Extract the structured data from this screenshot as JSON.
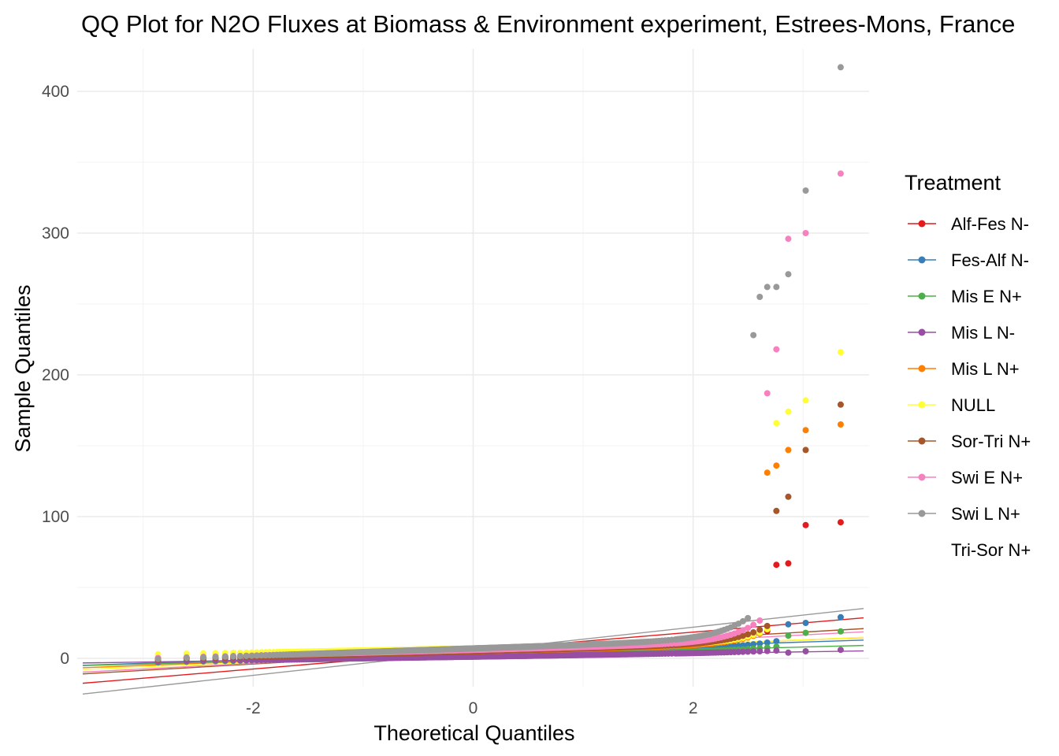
{
  "chart_data": {
    "type": "scatter",
    "title": "QQ Plot for N2O Fluxes at Biomass & Environment experiment, Estrees-Mons, France",
    "xlabel": "Theoretical Quantiles",
    "ylabel": "Sample Quantiles",
    "xlim": [
      -3.6,
      3.6
    ],
    "ylim": [
      -20,
      430
    ],
    "x_ticks": [
      -2,
      0,
      2
    ],
    "x_tick_labels": [
      "-2",
      "0",
      "2"
    ],
    "y_ticks": [
      0,
      100,
      200,
      300,
      400
    ],
    "y_tick_labels": [
      "0",
      "100",
      "200",
      "300",
      "400"
    ],
    "grid": true,
    "legend": {
      "title": "Treatment",
      "position": "right"
    },
    "series": [
      {
        "name": "Alf-Fes N-",
        "color": "#e41a1c",
        "max": 96,
        "mean": 5.5,
        "sd": 6.5,
        "spread": 8,
        "conv": 6,
        "shape": 3.2,
        "tail": [
          66,
          67,
          94,
          96
        ]
      },
      {
        "name": "Fes-Alf N-",
        "color": "#377eb8",
        "max": 29,
        "mean": 4,
        "sd": 2.5,
        "spread": 6,
        "conv": 2,
        "shape": 2.0,
        "tail": [
          24,
          25,
          29
        ]
      },
      {
        "name": "Mis E N+",
        "color": "#4daf4a",
        "max": 19,
        "mean": 2,
        "sd": 2.0,
        "spread": 5,
        "conv": 1.5,
        "shape": 2.4,
        "tail": [
          16,
          18,
          19
        ]
      },
      {
        "name": "Mis L N-",
        "color": "#984ea3",
        "max": 6,
        "mean": 1,
        "sd": 1.2,
        "spread": 4,
        "conv": 1.2,
        "shape": 2.0,
        "tail": [
          4,
          5,
          6
        ]
      },
      {
        "name": "Mis L N+",
        "color": "#ff7f00",
        "max": 165,
        "mean": 4,
        "sd": 3.0,
        "spread": 6,
        "conv": 5,
        "shape": 3.5,
        "tail": [
          131,
          136,
          147,
          161,
          165
        ]
      },
      {
        "name": "NULL",
        "color": "#ffff33",
        "max": 216,
        "mean": 3.5,
        "sd": 3.2,
        "spread": 5,
        "conv": 7,
        "shape": 4.0,
        "tail": [
          166,
          174,
          182,
          216
        ]
      },
      {
        "name": "Sor-Tri N+",
        "color": "#a65628",
        "max": 179,
        "mean": 5,
        "sd": 4.5,
        "spread": 7,
        "conv": 5,
        "shape": 3.3,
        "tail": [
          104,
          114,
          147,
          179
        ]
      },
      {
        "name": "Swi E N+",
        "color": "#f781bf",
        "max": 342,
        "mean": 4.5,
        "sd": 4.0,
        "spread": 7,
        "conv": 6,
        "shape": 3.6,
        "tail": [
          187,
          218,
          296,
          300,
          342
        ]
      },
      {
        "name": "Swi L N+",
        "color": "#999999",
        "max": 417,
        "mean": 5,
        "sd": 8.5,
        "spread": 9,
        "conv": 7,
        "shape": 3.4,
        "tail": [
          228,
          255,
          262,
          262,
          271,
          330,
          417
        ]
      },
      {
        "name": "Tri-Sor N+",
        "color": "#ffffff",
        "max": 0,
        "mean": 0,
        "sd": 0,
        "spread": 0,
        "conv": 0,
        "shape": 0,
        "tail": []
      }
    ]
  }
}
